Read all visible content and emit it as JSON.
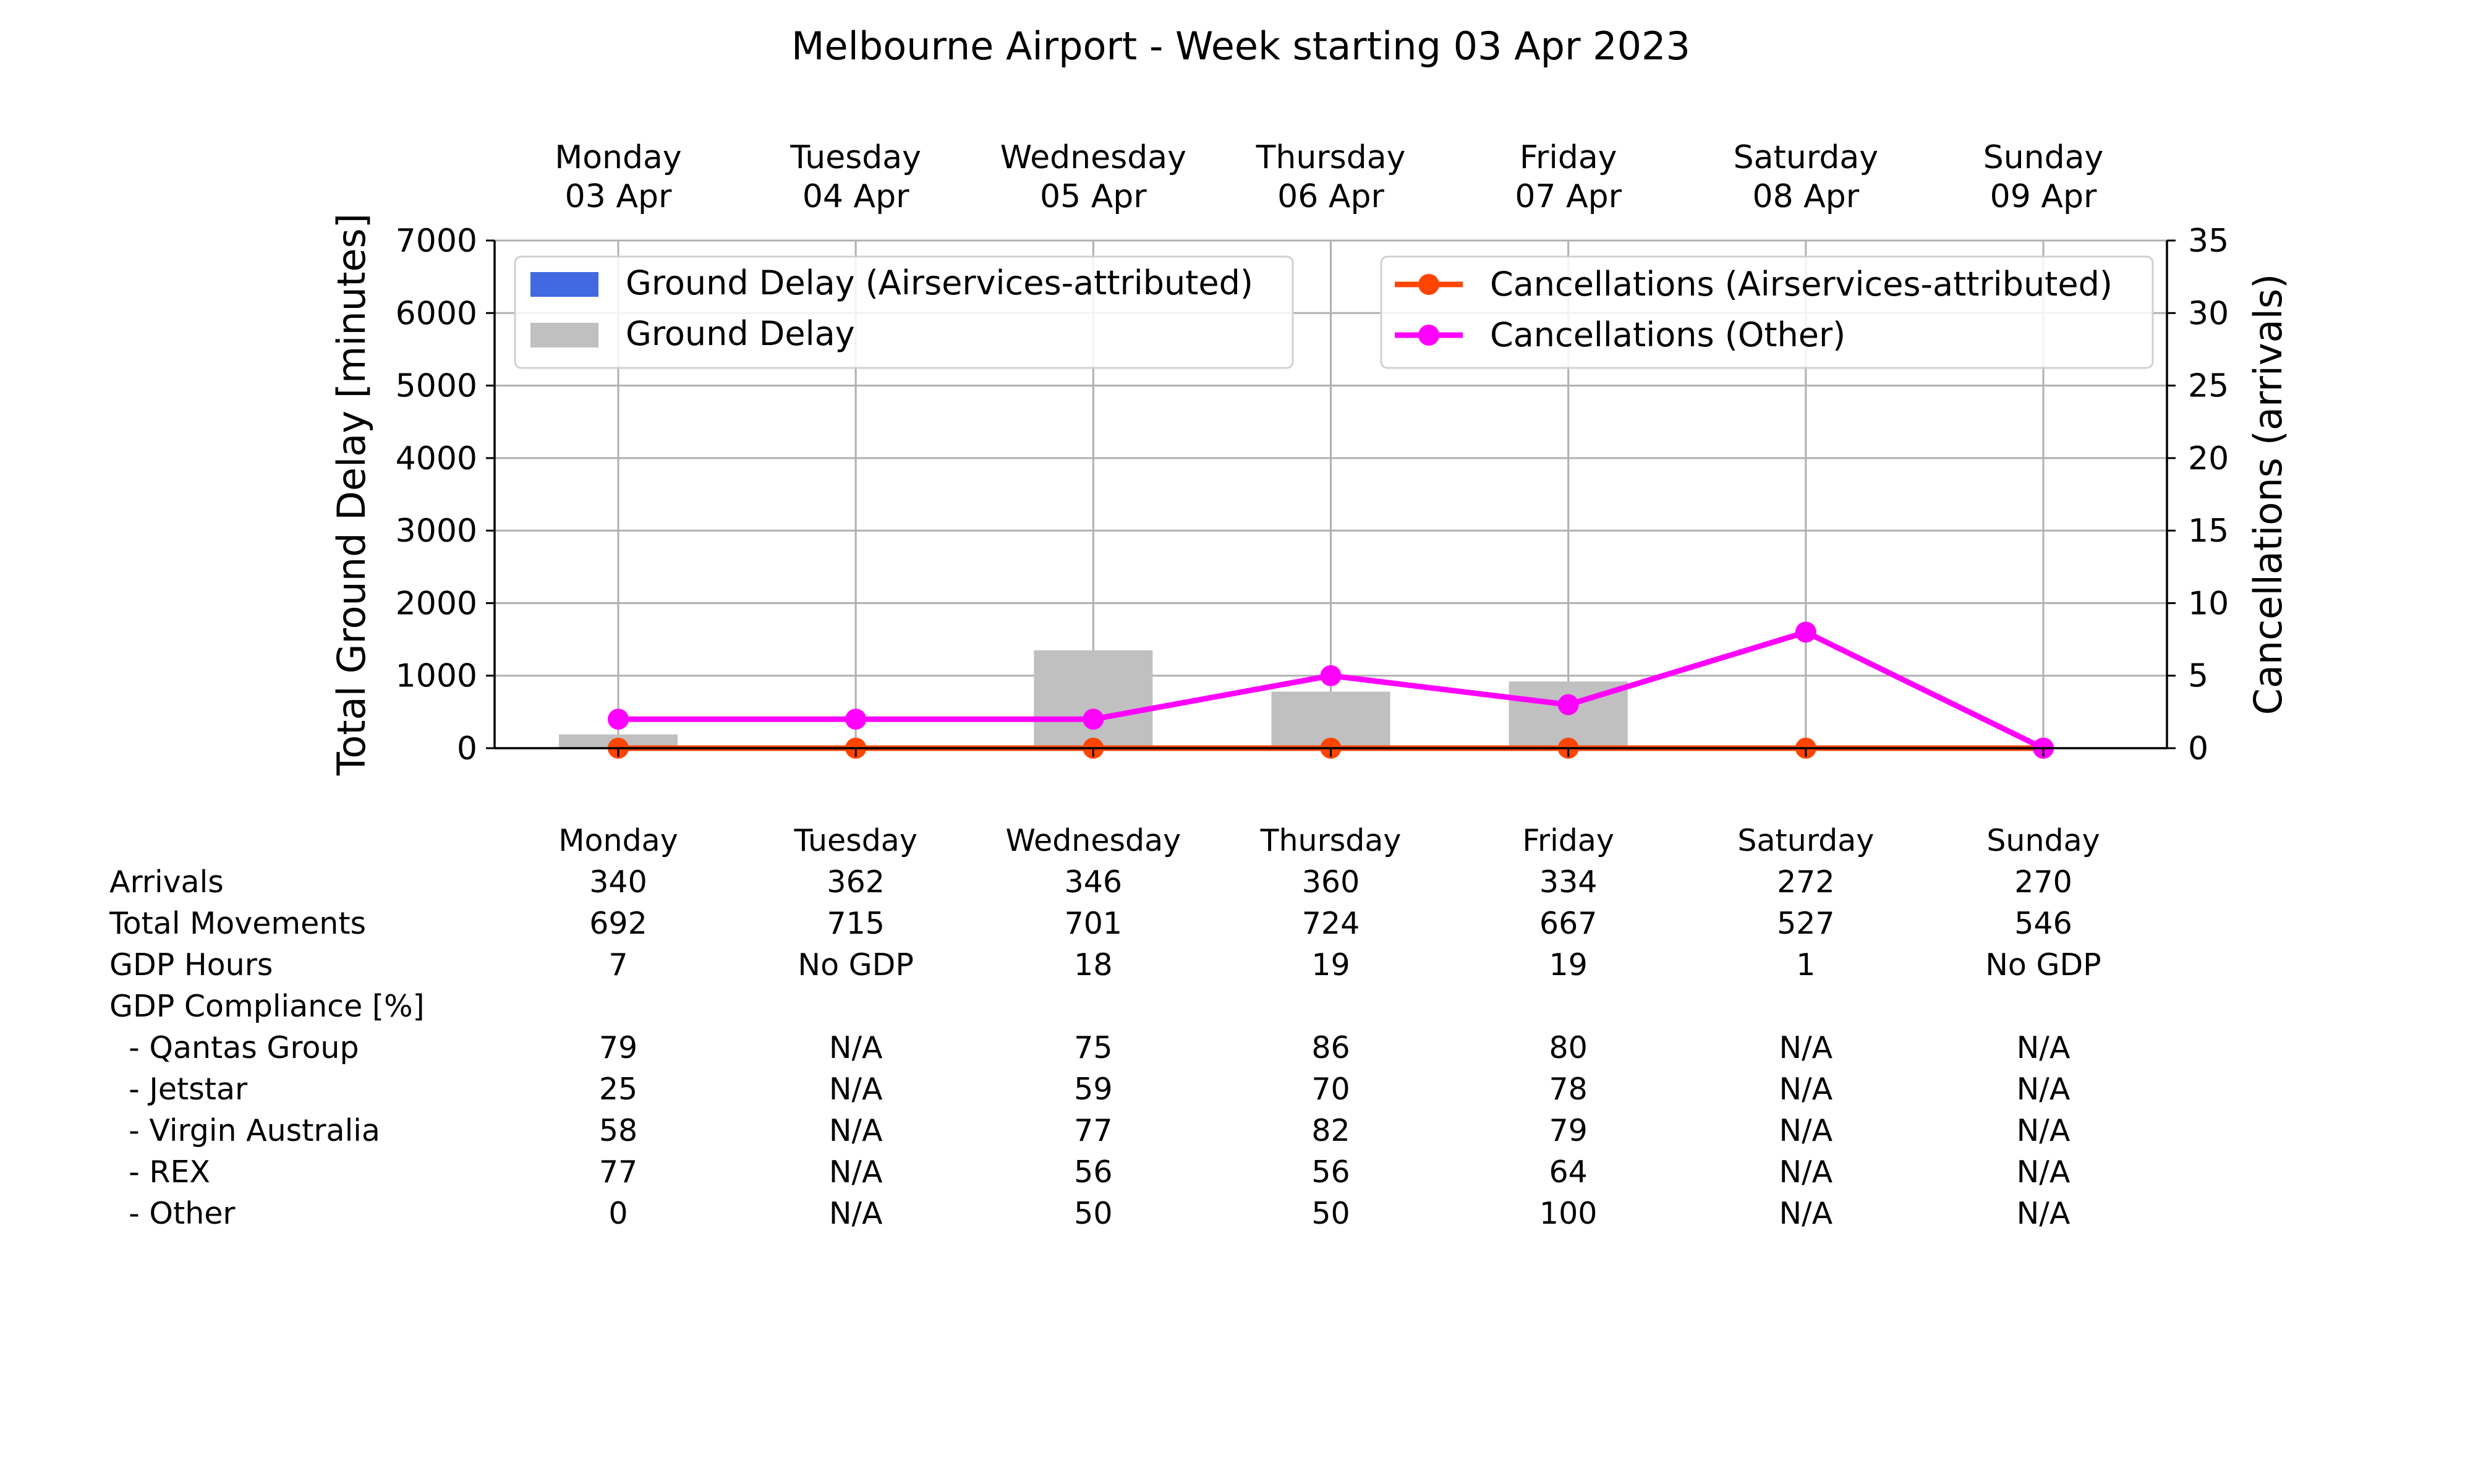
{
  "chart_data": {
    "type": "bar",
    "title": "Melbourne Airport - Week starting 03 Apr 2023",
    "categories": [
      "Monday",
      "Tuesday",
      "Wednesday",
      "Thursday",
      "Friday",
      "Saturday",
      "Sunday"
    ],
    "top_axis_labels": [
      [
        "Monday",
        "03 Apr"
      ],
      [
        "Tuesday",
        "04 Apr"
      ],
      [
        "Wednesday",
        "05 Apr"
      ],
      [
        "Thursday",
        "06 Apr"
      ],
      [
        "Friday",
        "07 Apr"
      ],
      [
        "Saturday",
        "08 Apr"
      ],
      [
        "Sunday",
        "09 Apr"
      ]
    ],
    "ylabel": "Total Ground Delay [minutes]",
    "ylim": [
      0,
      7000
    ],
    "yticks": [
      0,
      1000,
      2000,
      3000,
      4000,
      5000,
      6000,
      7000
    ],
    "y2label": "Cancellations (arrivals)",
    "y2lim": [
      0,
      35
    ],
    "y2ticks": [
      0,
      5,
      10,
      15,
      20,
      25,
      30,
      35
    ],
    "grid": true,
    "bar_series": [
      {
        "name": "Ground Delay (Airservices-attributed)",
        "color": "#4169e1",
        "values": [
          0,
          0,
          0,
          0,
          0,
          0,
          0
        ]
      },
      {
        "name": "Ground Delay",
        "color": "#c0c0c0",
        "values": [
          190,
          0,
          1350,
          780,
          920,
          0,
          0
        ]
      }
    ],
    "line_series": [
      {
        "name": "Cancellations (Airservices-attributed)",
        "color": "#ff4500",
        "axis": "right",
        "values": [
          0,
          0,
          0,
          0,
          0,
          0,
          0
        ]
      },
      {
        "name": "Cancellations (Other)",
        "color": "#ff00ff",
        "axis": "right",
        "values": [
          2,
          2,
          2,
          5,
          3,
          8,
          0
        ]
      }
    ],
    "legend_left_position": "upper-left",
    "legend_right_position": "upper-right",
    "table": {
      "header": [
        "Monday",
        "Tuesday",
        "Wednesday",
        "Thursday",
        "Friday",
        "Saturday",
        "Sunday"
      ],
      "rows": [
        {
          "label": "Arrivals",
          "values": [
            "340",
            "362",
            "346",
            "360",
            "334",
            "272",
            "270"
          ]
        },
        {
          "label": "Total Movements",
          "values": [
            "692",
            "715",
            "701",
            "724",
            "667",
            "527",
            "546"
          ]
        },
        {
          "label": "GDP Hours",
          "values": [
            "7",
            "No GDP",
            "18",
            "19",
            "19",
            "1",
            "No GDP"
          ]
        },
        {
          "label": "GDP Compliance [%]",
          "values": [
            "",
            "",
            "",
            "",
            "",
            "",
            ""
          ]
        },
        {
          "label": "  - Qantas Group",
          "values": [
            "79",
            "N/A",
            "75",
            "86",
            "80",
            "N/A",
            "N/A"
          ]
        },
        {
          "label": "  - Jetstar",
          "values": [
            "25",
            "N/A",
            "59",
            "70",
            "78",
            "N/A",
            "N/A"
          ]
        },
        {
          "label": "  - Virgin Australia",
          "values": [
            "58",
            "N/A",
            "77",
            "82",
            "79",
            "N/A",
            "N/A"
          ]
        },
        {
          "label": "  - REX",
          "values": [
            "77",
            "N/A",
            "56",
            "56",
            "64",
            "N/A",
            "N/A"
          ]
        },
        {
          "label": "  - Other",
          "values": [
            "0",
            "N/A",
            "50",
            "50",
            "100",
            "N/A",
            "N/A"
          ]
        }
      ]
    }
  }
}
